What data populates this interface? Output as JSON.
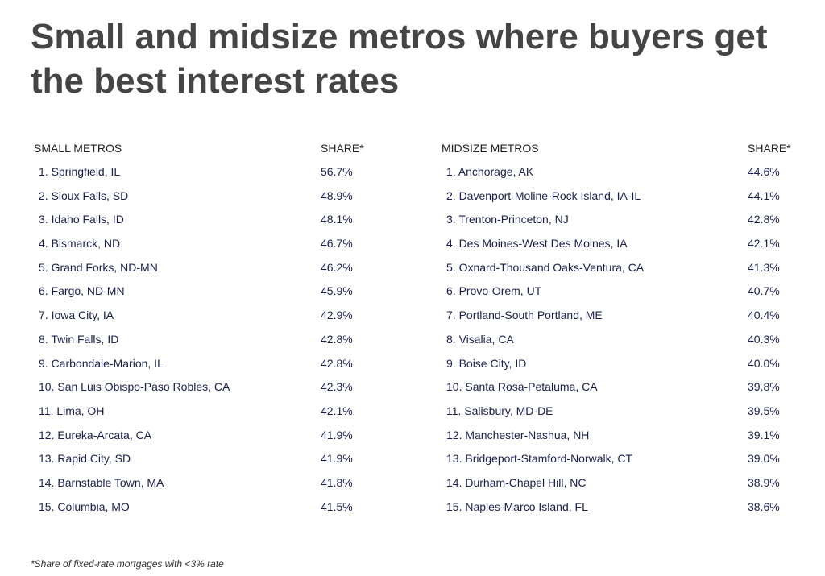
{
  "title": "Small and midsize metros where buyers get the best interest rates",
  "footnote": "*Share of fixed-rate mortgages with <3% rate",
  "chart_data": [
    {
      "type": "table",
      "columns": [
        "SMALL METROS",
        "SHARE*"
      ],
      "rows": [
        [
          "1. Springfield, IL",
          "56.7%"
        ],
        [
          "2. Sioux Falls, SD",
          "48.9%"
        ],
        [
          "3. Idaho Falls, ID",
          "48.1%"
        ],
        [
          "4. Bismarck, ND",
          "46.7%"
        ],
        [
          "5. Grand Forks, ND-MN",
          "46.2%"
        ],
        [
          "6. Fargo, ND-MN",
          "45.9%"
        ],
        [
          "7. Iowa City, IA",
          "42.9%"
        ],
        [
          "8. Twin Falls, ID",
          "42.8%"
        ],
        [
          "9. Carbondale-Marion, IL",
          "42.8%"
        ],
        [
          "10. San Luis Obispo-Paso Robles, CA",
          "42.3%"
        ],
        [
          "11. Lima, OH",
          "42.1%"
        ],
        [
          "12. Eureka-Arcata, CA",
          "41.9%"
        ],
        [
          "13. Rapid City, SD",
          "41.9%"
        ],
        [
          "14. Barnstable Town, MA",
          "41.8%"
        ],
        [
          "15. Columbia, MO",
          "41.5%"
        ]
      ]
    },
    {
      "type": "table",
      "columns": [
        "MIDSIZE METROS",
        "SHARE*"
      ],
      "rows": [
        [
          "1. Anchorage, AK",
          "44.6%"
        ],
        [
          "2. Davenport-Moline-Rock Island, IA-IL",
          "44.1%"
        ],
        [
          "3. Trenton-Princeton, NJ",
          "42.8%"
        ],
        [
          "4. Des Moines-West Des Moines, IA",
          "42.1%"
        ],
        [
          "5. Oxnard-Thousand Oaks-Ventura, CA",
          "41.3%"
        ],
        [
          "6. Provo-Orem, UT",
          "40.7%"
        ],
        [
          "7. Portland-South Portland, ME",
          "40.4%"
        ],
        [
          "8. Visalia, CA",
          "40.3%"
        ],
        [
          "9. Boise City, ID",
          "40.0%"
        ],
        [
          "10. Santa Rosa-Petaluma, CA",
          "39.8%"
        ],
        [
          "11. Salisbury, MD-DE",
          "39.5%"
        ],
        [
          "12. Manchester-Nashua, NH",
          "39.1%"
        ],
        [
          "13. Bridgeport-Stamford-Norwalk, CT",
          "39.0%"
        ],
        [
          "14. Durham-Chapel Hill, NC",
          "38.9%"
        ],
        [
          "15. Naples-Marco Island, FL",
          "38.6%"
        ]
      ]
    }
  ]
}
